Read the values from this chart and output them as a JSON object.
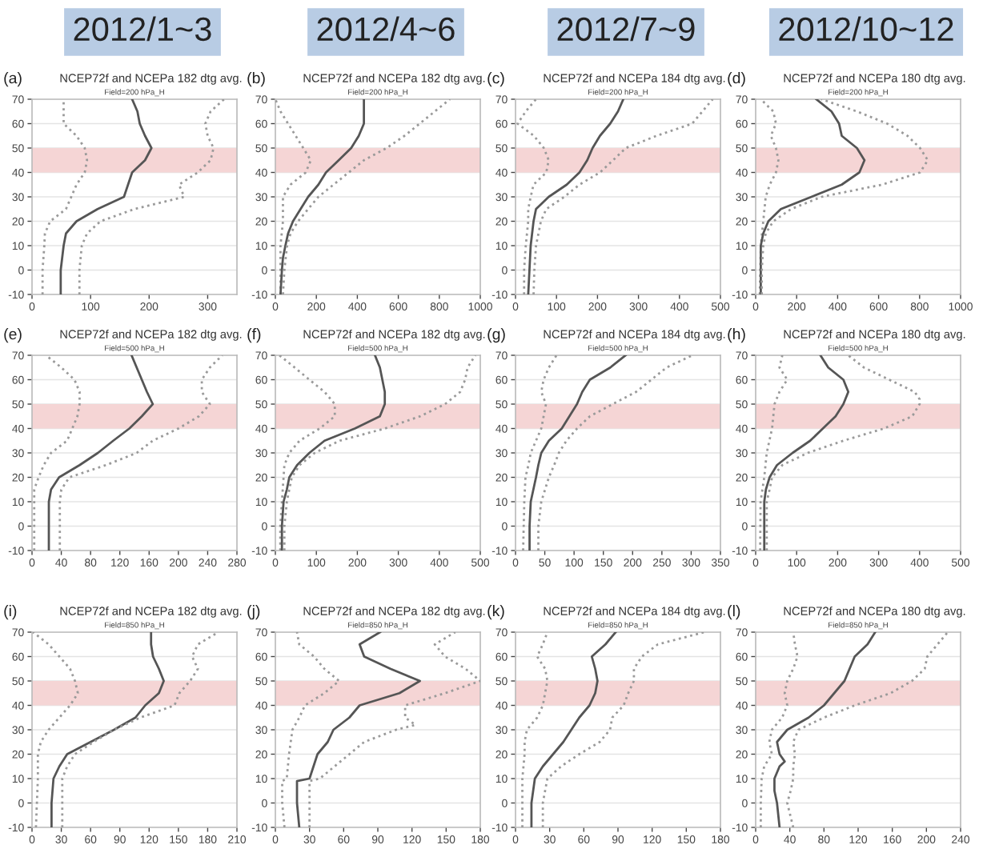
{
  "chart_data": [
    {
      "type": "line",
      "title": "NCEP72f and NCEPa 182 dtg avg.",
      "subtitle": "Field=200 hPa_H",
      "annotations": [
        "(a)",
        "2012/1~3"
      ],
      "xlim": [
        0,
        350
      ],
      "xticks": [
        0,
        100,
        200,
        300
      ],
      "ylim": [
        -10,
        70
      ],
      "yticks": [
        -10,
        0,
        10,
        20,
        30,
        40,
        50,
        60,
        70
      ],
      "grid": "y",
      "bands": [
        {
          "axis": "y",
          "from": 40,
          "to": 50,
          "color": "#f5d5d5"
        }
      ],
      "series": [
        {
          "color": "#9a9a9a",
          "line_style": "dotted",
          "x": [
            18,
            18,
            21,
            22,
            31,
            58,
            67,
            76,
            90,
            94,
            90,
            76,
            54,
            54,
            54
          ],
          "values": [
            -10,
            0,
            10,
            15,
            20,
            25,
            30,
            35,
            40,
            45,
            50,
            55,
            60,
            65,
            70
          ]
        },
        {
          "color": "#555555",
          "line_style": "solid",
          "x": [
            49,
            49,
            54,
            58,
            76,
            112,
            157,
            164,
            171,
            193,
            204,
            193,
            184,
            180,
            171
          ],
          "values": [
            -10,
            0,
            10,
            15,
            20,
            25,
            30,
            35,
            40,
            45,
            50,
            55,
            60,
            65,
            70
          ]
        },
        {
          "color": "#9a9a9a",
          "line_style": "dotted",
          "x": [
            81,
            81,
            85,
            94,
            117,
            175,
            260,
            251,
            283,
            305,
            310,
            300,
            296,
            305,
            328
          ],
          "values": [
            -10,
            0,
            10,
            15,
            20,
            25,
            30,
            35,
            40,
            45,
            50,
            55,
            60,
            65,
            70
          ]
        }
      ]
    },
    {
      "type": "line",
      "title": "NCEP72f and NCEPa 182 dtg avg.",
      "subtitle": "Field=200 hPa_H",
      "annotations": [
        "(b)",
        "2012/4~6"
      ],
      "xlim": [
        0,
        1000
      ],
      "xticks": [
        0,
        200,
        400,
        600,
        800,
        1000
      ],
      "ylim": [
        -10,
        70
      ],
      "yticks": [
        -10,
        0,
        10,
        20,
        30,
        40,
        50,
        60,
        70
      ],
      "grid": "y",
      "bands": [
        {
          "axis": "y",
          "from": 40,
          "to": 50,
          "color": "#f5d5d5"
        }
      ],
      "series": [
        {
          "color": "#9a9a9a",
          "line_style": "dotted",
          "x": [
            25,
            25,
            25,
            37,
            37,
            74,
            148,
            173,
            136,
            62,
            25,
            0
          ],
          "values": [
            -10,
            0,
            10,
            20,
            30,
            35,
            40,
            45,
            50,
            60,
            65,
            70
          ]
        },
        {
          "color": "#555555",
          "line_style": "solid",
          "x": [
            25,
            32,
            37,
            49,
            62,
            86,
            123,
            160,
            210,
            247,
            309,
            370,
            407,
            432,
            432
          ],
          "values": [
            -10,
            0,
            5,
            10,
            15,
            20,
            25,
            30,
            35,
            40,
            45,
            50,
            55,
            60,
            70
          ]
        },
        {
          "color": "#9a9a9a",
          "line_style": "dotted",
          "x": [
            37,
            44,
            57,
            74,
            111,
            160,
            210,
            284,
            358,
            432,
            543,
            630,
            704,
            778,
            852
          ],
          "values": [
            -10,
            0,
            10,
            15,
            20,
            25,
            30,
            35,
            40,
            45,
            50,
            55,
            60,
            65,
            70
          ]
        }
      ]
    },
    {
      "type": "line",
      "title": "NCEP72f and NCEPa 184 dtg avg.",
      "subtitle": "Field=200 hPa_H",
      "annotations": [
        "(c)",
        "2012/7~9"
      ],
      "xlim": [
        0,
        500
      ],
      "xticks": [
        0,
        100,
        200,
        300,
        400,
        500
      ],
      "ylim": [
        -10,
        70
      ],
      "yticks": [
        -10,
        0,
        10,
        20,
        30,
        40,
        50,
        60,
        70
      ],
      "grid": "y",
      "bands": [
        {
          "axis": "y",
          "from": 40,
          "to": 50,
          "color": "#f5d5d5"
        }
      ],
      "series": [
        {
          "color": "#9a9a9a",
          "line_style": "dotted",
          "x": [
            21,
            21,
            25,
            31,
            31,
            37,
            44,
            75,
            81,
            69,
            45,
            5,
            25,
            50
          ],
          "values": [
            -10,
            0,
            10,
            20,
            25,
            30,
            35,
            40,
            45,
            50,
            55,
            60,
            65,
            70
          ]
        },
        {
          "color": "#555555",
          "line_style": "solid",
          "x": [
            31,
            34,
            37,
            44,
            50,
            81,
            125,
            156,
            175,
            188,
            206,
            231,
            250,
            263
          ],
          "values": [
            -10,
            0,
            10,
            20,
            25,
            30,
            35,
            40,
            45,
            50,
            55,
            60,
            65,
            70
          ]
        },
        {
          "color": "#9a9a9a",
          "line_style": "dotted",
          "x": [
            44,
            46,
            50,
            62,
            75,
            119,
            156,
            206,
            238,
            269,
            344,
            431,
            456,
            481
          ],
          "values": [
            -10,
            0,
            10,
            20,
            25,
            30,
            35,
            40,
            45,
            50,
            55,
            60,
            65,
            70
          ]
        }
      ]
    },
    {
      "type": "line",
      "title": "NCEP72f and NCEPa 180 dtg avg.",
      "subtitle": "Field=200 hPa_H",
      "annotations": [
        "(d)",
        "2012/10~12"
      ],
      "xlim": [
        0,
        1000
      ],
      "xticks": [
        0,
        200,
        400,
        600,
        800,
        1000
      ],
      "ylim": [
        -10,
        70
      ],
      "yticks": [
        -10,
        0,
        10,
        20,
        30,
        40,
        50,
        60,
        70
      ],
      "grid": "y",
      "bands": [
        {
          "axis": "y",
          "from": 40,
          "to": 50,
          "color": "#f5d5d5"
        }
      ],
      "series": [
        {
          "color": "#9a9a9a",
          "line_style": "dotted",
          "x": [
            20,
            25,
            37,
            49,
            69,
            99,
            111,
            99,
            74,
            99,
            86,
            25
          ],
          "values": [
            -10,
            10,
            20,
            30,
            35,
            40,
            45,
            50,
            55,
            60,
            65,
            70
          ]
        },
        {
          "color": "#555555",
          "line_style": "solid",
          "x": [
            25,
            25,
            25,
            37,
            62,
            123,
            272,
            420,
            506,
            531,
            494,
            420,
            407,
            370,
            296
          ],
          "values": [
            -10,
            0,
            10,
            15,
            20,
            25,
            30,
            35,
            40,
            45,
            50,
            55,
            60,
            65,
            70
          ]
        },
        {
          "color": "#9a9a9a",
          "line_style": "dotted",
          "x": [
            30,
            30,
            37,
            49,
            86,
            173,
            321,
            617,
            802,
            840,
            802,
            741,
            642,
            494,
            321
          ],
          "values": [
            -10,
            0,
            10,
            15,
            20,
            25,
            30,
            35,
            40,
            45,
            50,
            55,
            60,
            65,
            70
          ]
        }
      ]
    },
    {
      "type": "line",
      "title": "NCEP72f and NCEPa 182 dtg avg.",
      "subtitle": "Field=500 hPa_H",
      "annotations": [
        "(e)"
      ],
      "xlim": [
        0,
        280
      ],
      "xticks": [
        0,
        40,
        80,
        120,
        160,
        200,
        240,
        280
      ],
      "ylim": [
        -10,
        70
      ],
      "yticks": [
        -10,
        0,
        10,
        20,
        30,
        40,
        50,
        60,
        70
      ],
      "grid": "y",
      "bands": [
        {
          "axis": "y",
          "from": 40,
          "to": 50,
          "color": "#f5d5d5"
        }
      ],
      "series": [
        {
          "color": "#9a9a9a",
          "line_style": "dotted",
          "x": [
            3,
            3,
            3,
            9,
            16,
            26,
            48,
            55,
            62,
            65,
            65,
            58,
            40,
            19
          ],
          "values": [
            -10,
            10,
            15,
            20,
            25,
            30,
            35,
            40,
            45,
            50,
            55,
            60,
            65,
            70
          ]
        },
        {
          "color": "#555555",
          "line_style": "solid",
          "x": [
            23,
            23,
            23,
            26,
            37,
            65,
            90,
            111,
            133,
            150,
            165,
            157,
            150,
            143,
            136
          ],
          "values": [
            -10,
            0,
            10,
            15,
            20,
            25,
            30,
            35,
            40,
            45,
            50,
            55,
            60,
            65,
            70
          ]
        },
        {
          "color": "#9a9a9a",
          "line_style": "dotted",
          "x": [
            38,
            38,
            38,
            40,
            51,
            101,
            143,
            165,
            200,
            228,
            243,
            232,
            232,
            243,
            260
          ],
          "values": [
            -10,
            0,
            10,
            15,
            20,
            25,
            30,
            35,
            40,
            45,
            50,
            55,
            60,
            65,
            70
          ]
        }
      ]
    },
    {
      "type": "line",
      "title": "NCEP72f and NCEPa 182 dtg avg.",
      "subtitle": "Field=500 hPa_H",
      "annotations": [
        "(f)"
      ],
      "xlim": [
        0,
        500
      ],
      "xticks": [
        0,
        100,
        200,
        300,
        400,
        500
      ],
      "ylim": [
        -10,
        70
      ],
      "yticks": [
        -10,
        0,
        10,
        20,
        30,
        40,
        50,
        60,
        70
      ],
      "grid": "y",
      "bands": [
        {
          "axis": "y",
          "from": 40,
          "to": 50,
          "color": "#f5d5d5"
        }
      ],
      "series": [
        {
          "color": "#9a9a9a",
          "line_style": "dotted",
          "x": [
            12,
            12,
            16,
            20,
            22,
            34,
            59,
            108,
            145,
            145,
            120,
            83,
            47,
            10
          ],
          "values": [
            -10,
            0,
            10,
            20,
            25,
            30,
            35,
            40,
            45,
            50,
            55,
            60,
            65,
            70
          ]
        },
        {
          "color": "#555555",
          "line_style": "solid",
          "x": [
            16,
            16,
            20,
            28,
            34,
            53,
            83,
            120,
            194,
            255,
            267,
            267,
            261,
            255,
            243
          ],
          "values": [
            -10,
            0,
            10,
            15,
            20,
            25,
            30,
            35,
            40,
            45,
            50,
            55,
            60,
            65,
            70
          ]
        },
        {
          "color": "#9a9a9a",
          "line_style": "dotted",
          "x": [
            22,
            22,
            28,
            40,
            59,
            96,
            157,
            267,
            353,
            414,
            451,
            463,
            469,
            488
          ],
          "values": [
            -10,
            0,
            10,
            20,
            25,
            30,
            35,
            40,
            45,
            50,
            55,
            60,
            65,
            70
          ]
        }
      ]
    },
    {
      "type": "line",
      "title": "NCEP72f and NCEPa 184 dtg avg.",
      "subtitle": "Field=500 hPa_H",
      "annotations": [
        "(g)"
      ],
      "xlim": [
        0,
        350
      ],
      "xticks": [
        0,
        50,
        100,
        150,
        200,
        250,
        300,
        350
      ],
      "ylim": [
        -10,
        70
      ],
      "yticks": [
        -10,
        0,
        10,
        20,
        30,
        40,
        50,
        60,
        70
      ],
      "grid": "y",
      "bands": [
        {
          "axis": "y",
          "from": 40,
          "to": 50,
          "color": "#f5d5d5"
        }
      ],
      "series": [
        {
          "color": "#9a9a9a",
          "line_style": "dotted",
          "x": [
            13,
            15,
            17,
            22,
            26,
            35,
            44,
            48,
            52,
            44,
            48,
            57,
            70
          ],
          "values": [
            -10,
            10,
            20,
            25,
            30,
            35,
            40,
            45,
            50,
            55,
            60,
            65,
            70
          ]
        },
        {
          "color": "#555555",
          "line_style": "solid",
          "x": [
            24,
            24,
            26,
            35,
            39,
            44,
            57,
            79,
            92,
            105,
            114,
            127,
            162,
            188
          ],
          "values": [
            -10,
            0,
            10,
            20,
            25,
            30,
            35,
            40,
            45,
            50,
            55,
            60,
            65,
            70
          ]
        },
        {
          "color": "#9a9a9a",
          "line_style": "dotted",
          "x": [
            39,
            39,
            44,
            57,
            66,
            74,
            87,
            105,
            127,
            166,
            206,
            232,
            258,
            302
          ],
          "values": [
            -10,
            0,
            10,
            20,
            25,
            30,
            35,
            40,
            45,
            50,
            55,
            60,
            65,
            70
          ]
        }
      ]
    },
    {
      "type": "line",
      "title": "NCEP72f and NCEPa 180 dtg avg.",
      "subtitle": "Field=500 hPa_H",
      "annotations": [
        "(h)"
      ],
      "xlim": [
        0,
        500
      ],
      "xticks": [
        0,
        100,
        200,
        300,
        400,
        500
      ],
      "ylim": [
        -10,
        70
      ],
      "yticks": [
        -10,
        0,
        10,
        20,
        30,
        40,
        50,
        60,
        70
      ],
      "grid": "y",
      "bands": [
        {
          "axis": "y",
          "from": 40,
          "to": 50,
          "color": "#f5d5d5"
        }
      ],
      "series": [
        {
          "color": "#9a9a9a",
          "line_style": "dotted",
          "x": [
            11,
            12,
            21,
            27,
            40,
            46,
            58,
            77,
            58,
            65
          ],
          "values": [
            -10,
            10,
            20,
            30,
            40,
            50,
            55,
            60,
            65,
            70
          ]
        },
        {
          "color": "#555555",
          "line_style": "solid",
          "x": [
            21,
            21,
            21,
            25,
            34,
            52,
            90,
            133,
            164,
            195,
            214,
            226,
            214,
            177,
            158
          ],
          "values": [
            -10,
            0,
            10,
            15,
            20,
            25,
            30,
            35,
            40,
            45,
            50,
            55,
            60,
            65,
            70
          ]
        },
        {
          "color": "#9a9a9a",
          "line_style": "dotted",
          "x": [
            27,
            27,
            27,
            34,
            40,
            65,
            127,
            214,
            313,
            382,
            400,
            400,
            388,
            326,
            264,
            226
          ],
          "values": [
            -10,
            0,
            10,
            15,
            20,
            25,
            30,
            35,
            40,
            45,
            50,
            52,
            55,
            60,
            65,
            70
          ]
        }
      ]
    },
    {
      "type": "line",
      "title": "NCEP72f and NCEPa 182 dtg avg.",
      "subtitle": "Field=850 hPa_H",
      "annotations": [
        "(i)"
      ],
      "xlim": [
        0,
        210
      ],
      "xticks": [
        0,
        30,
        60,
        90,
        120,
        150,
        180,
        210
      ],
      "ylim": [
        -10,
        70
      ],
      "yticks": [
        -10,
        0,
        10,
        20,
        30,
        40,
        50,
        60,
        70
      ],
      "grid": "y",
      "bands": [
        {
          "axis": "y",
          "from": 40,
          "to": 50,
          "color": "#f5d5d5"
        }
      ],
      "series": [
        {
          "color": "#9a9a9a",
          "line_style": "dotted",
          "x": [
            4,
            5,
            6,
            6,
            9,
            17,
            28,
            39,
            47,
            44,
            39,
            28,
            17,
            1
          ],
          "values": [
            -10,
            0,
            10,
            20,
            25,
            30,
            35,
            40,
            45,
            50,
            55,
            60,
            65,
            70
          ]
        },
        {
          "color": "#555555",
          "line_style": "solid",
          "x": [
            20,
            20,
            22,
            28,
            36,
            60,
            84,
            106,
            116,
            130,
            135,
            130,
            124,
            122,
            122
          ],
          "values": [
            -10,
            0,
            10,
            15,
            20,
            25,
            30,
            35,
            40,
            45,
            50,
            55,
            60,
            65,
            70
          ]
        },
        {
          "color": "#9a9a9a",
          "line_style": "dotted",
          "x": [
            31,
            31,
            31,
            36,
            44,
            63,
            84,
            111,
            146,
            151,
            162,
            170,
            164,
            170,
            191
          ],
          "values": [
            -10,
            0,
            10,
            15,
            20,
            25,
            30,
            35,
            40,
            45,
            50,
            55,
            60,
            65,
            70
          ]
        }
      ]
    },
    {
      "type": "line",
      "title": "NCEP72f and NCEPa 182 dtg avg.",
      "subtitle": "Field=850 hPa_H",
      "annotations": [
        "(j)"
      ],
      "xlim": [
        0,
        180
      ],
      "xticks": [
        0,
        30,
        60,
        90,
        120,
        150,
        180
      ],
      "ylim": [
        -10,
        70
      ],
      "yticks": [
        -10,
        0,
        10,
        20,
        30,
        40,
        50,
        60,
        70
      ],
      "grid": "y",
      "bands": [
        {
          "axis": "y",
          "from": 40,
          "to": 50,
          "color": "#f5d5d5"
        }
      ],
      "series": [
        {
          "color": "#9a9a9a",
          "line_style": "dotted",
          "x": [
            8,
            6,
            6,
            10,
            12,
            15,
            21,
            26,
            43,
            56,
            43,
            34,
            21,
            19
          ],
          "values": [
            -10,
            0,
            9,
            10,
            20,
            30,
            35,
            40,
            45,
            50,
            55,
            60,
            65,
            70
          ]
        },
        {
          "color": "#555555",
          "line_style": "solid",
          "x": [
            21,
            19,
            19,
            30,
            37,
            46,
            51,
            65,
            74,
            109,
            127,
            101,
            78,
            74,
            92
          ],
          "values": [
            -10,
            0,
            9,
            10,
            20,
            25,
            30,
            35,
            40,
            45,
            50,
            55,
            60,
            65,
            70
          ]
        },
        {
          "color": "#9a9a9a",
          "line_style": "dotted",
          "x": [
            30,
            30,
            30,
            39,
            65,
            78,
            106,
            123,
            114,
            114,
            149,
            180,
            167,
            149,
            140,
            158
          ],
          "values": [
            -10,
            0,
            9,
            10,
            20,
            25,
            30,
            32,
            35,
            40,
            45,
            50,
            55,
            60,
            65,
            70
          ]
        }
      ]
    },
    {
      "type": "line",
      "title": "NCEP72f and NCEPa 184 dtg avg.",
      "subtitle": "Field=850 hPa_H",
      "annotations": [
        "(k)"
      ],
      "xlim": [
        0,
        180
      ],
      "xticks": [
        0,
        30,
        60,
        90,
        120,
        150,
        180
      ],
      "ylim": [
        -10,
        70
      ],
      "yticks": [
        -10,
        0,
        10,
        20,
        30,
        40,
        50,
        60,
        70
      ],
      "grid": "y",
      "bands": [
        {
          "axis": "y",
          "from": 40,
          "to": 50,
          "color": "#f5d5d5"
        }
      ],
      "series": [
        {
          "color": "#9a9a9a",
          "line_style": "dotted",
          "x": [
            6,
            6,
            6,
            8,
            8,
            10,
            19,
            24,
            26,
            28,
            26,
            19,
            24,
            28
          ],
          "values": [
            -10,
            0,
            10,
            20,
            25,
            30,
            35,
            40,
            45,
            50,
            55,
            60,
            65,
            70
          ]
        },
        {
          "color": "#555555",
          "line_style": "solid",
          "x": [
            14,
            14,
            17,
            24,
            33,
            42,
            49,
            56,
            65,
            70,
            72,
            70,
            67,
            79,
            88
          ],
          "values": [
            -10,
            0,
            10,
            15,
            20,
            25,
            30,
            35,
            40,
            45,
            50,
            55,
            60,
            65,
            70
          ]
        },
        {
          "color": "#9a9a9a",
          "line_style": "dotted",
          "x": [
            24,
            24,
            28,
            40,
            56,
            74,
            83,
            85,
            95,
            99,
            104,
            104,
            111,
            125,
            166
          ],
          "values": [
            -10,
            0,
            10,
            15,
            20,
            25,
            30,
            35,
            40,
            45,
            50,
            55,
            60,
            65,
            70
          ]
        }
      ]
    },
    {
      "type": "line",
      "title": "NCEP72f and NCEPa 180 dtg avg.",
      "subtitle": "Field=850 hPa_H",
      "annotations": [
        "(l)"
      ],
      "xlim": [
        0,
        240
      ],
      "xticks": [
        0,
        40,
        80,
        120,
        160,
        200,
        240
      ],
      "ylim": [
        -10,
        70
      ],
      "yticks": [
        -10,
        0,
        10,
        20,
        30,
        40,
        50,
        60,
        70
      ],
      "grid": "y",
      "bands": [
        {
          "axis": "y",
          "from": 40,
          "to": 50,
          "color": "#f5d5d5"
        }
      ],
      "series": [
        {
          "color": "#9a9a9a",
          "line_style": "dotted",
          "x": [
            6,
            6,
            7,
            10,
            19,
            16,
            19,
            31,
            37,
            34,
            37,
            44,
            49,
            46,
            44
          ],
          "values": [
            -10,
            0,
            10,
            15,
            20,
            25,
            30,
            35,
            40,
            45,
            50,
            55,
            60,
            65,
            70
          ]
        },
        {
          "color": "#555555",
          "line_style": "solid",
          "x": [
            28,
            25,
            22,
            22,
            28,
            34,
            28,
            25,
            37,
            62,
            80,
            92,
            104,
            110,
            116,
            131,
            140
          ],
          "values": [
            -10,
            0,
            5,
            10,
            15,
            17,
            20,
            25,
            30,
            35,
            40,
            45,
            50,
            55,
            60,
            65,
            70
          ]
        },
        {
          "color": "#9a9a9a",
          "line_style": "dotted",
          "x": [
            44,
            37,
            41,
            44,
            44,
            46,
            44,
            50,
            80,
            116,
            158,
            183,
            198,
            201,
            213,
            225
          ],
          "values": [
            -10,
            0,
            5,
            10,
            15,
            20,
            25,
            30,
            35,
            40,
            45,
            50,
            55,
            60,
            65,
            70
          ]
        }
      ]
    }
  ]
}
